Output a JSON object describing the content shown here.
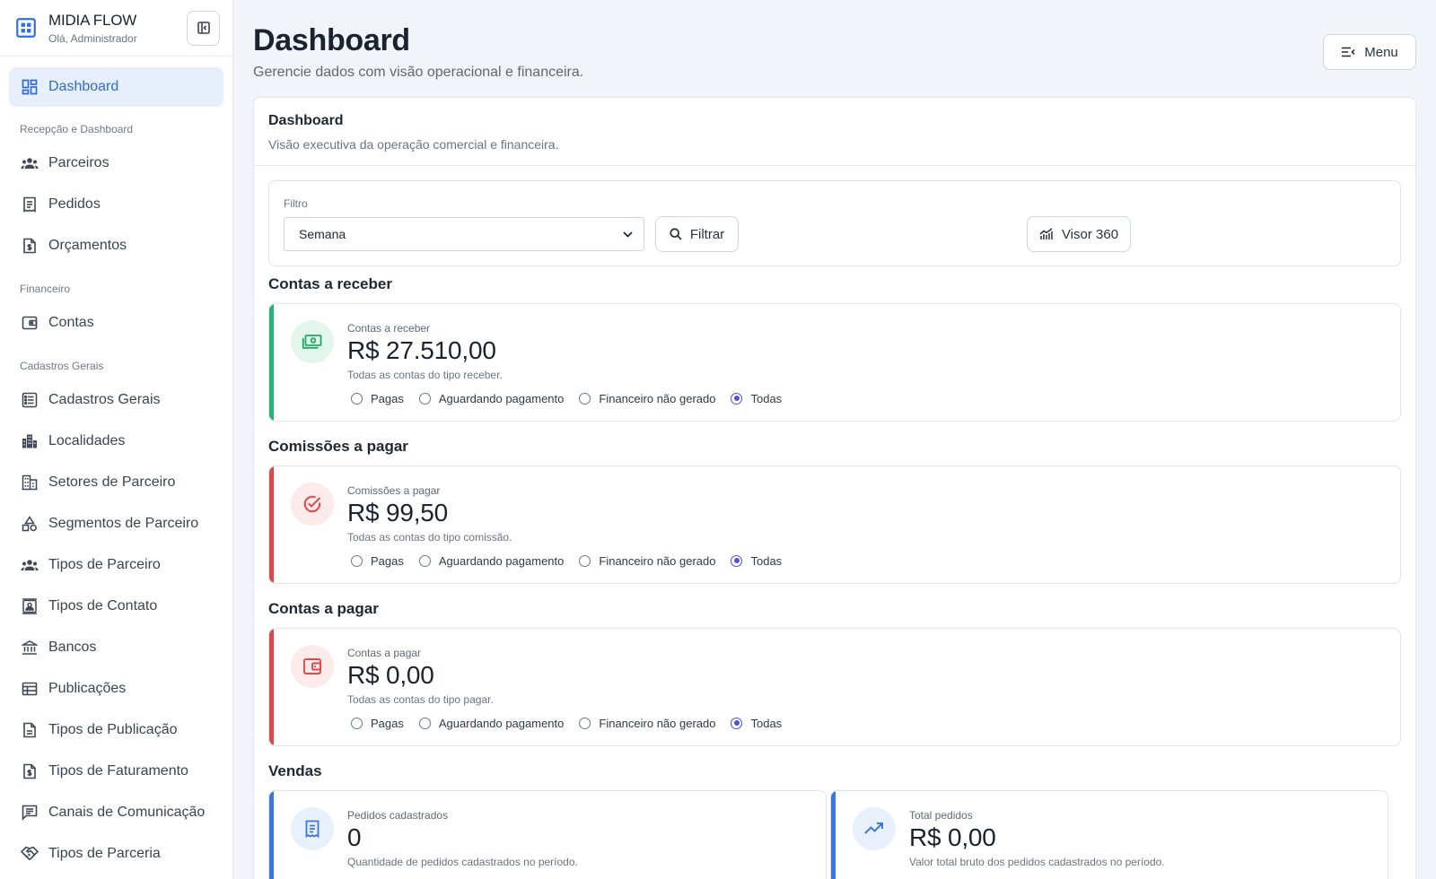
{
  "brand": {
    "title": "MIDIA FLOW",
    "subtitle": "Olá, Administrador"
  },
  "sidebar": {
    "active": {
      "label": "Dashboard",
      "icon": "dashboard-icon"
    },
    "sections": [
      {
        "title": "Recepção e Dashboard",
        "items": [
          {
            "label": "Parceiros",
            "icon": "people-icon"
          },
          {
            "label": "Pedidos",
            "icon": "receipt-icon"
          },
          {
            "label": "Orçamentos",
            "icon": "document-dollar-icon"
          }
        ]
      },
      {
        "title": "Financeiro",
        "items": [
          {
            "label": "Contas",
            "icon": "wallet-icon"
          }
        ]
      },
      {
        "title": "Cadastros Gerais",
        "items": [
          {
            "label": "Cadastros Gerais",
            "icon": "list-icon"
          },
          {
            "label": "Localidades",
            "icon": "city-icon"
          },
          {
            "label": "Setores de Parceiro",
            "icon": "building-icon"
          },
          {
            "label": "Segmentos de Parceiro",
            "icon": "shapes-icon"
          },
          {
            "label": "Tipos de Parceiro",
            "icon": "people-icon"
          },
          {
            "label": "Tipos de Contato",
            "icon": "contact-card-icon"
          },
          {
            "label": "Bancos",
            "icon": "bank-icon"
          },
          {
            "label": "Publicações",
            "icon": "table-icon"
          },
          {
            "label": "Tipos de Publicação",
            "icon": "file-icon"
          },
          {
            "label": "Tipos de Faturamento",
            "icon": "document-dollar-icon"
          },
          {
            "label": "Canais de Comunicação",
            "icon": "chat-icon"
          },
          {
            "label": "Tipos de Parceria",
            "icon": "handshake-icon"
          }
        ]
      }
    ]
  },
  "header": {
    "title": "Dashboard",
    "subtitle": "Gerencie dados com visão operacional e financeira.",
    "menu_label": "Menu"
  },
  "panel": {
    "title": "Dashboard",
    "subtitle": "Visão executiva da operação comercial e financeira."
  },
  "filter": {
    "label": "Filtro",
    "selected": "Semana",
    "filter_button": "Filtrar",
    "visor_button": "Visor 360"
  },
  "radio_options": [
    "Pagas",
    "Aguardando pagamento",
    "Financeiro não gerado",
    "Todas"
  ],
  "sections": {
    "receber": {
      "title": "Contas a receber",
      "label": "Contas a receber",
      "value": "R$ 27.510,00",
      "desc": "Todas as contas do tipo receber.",
      "selected": "Todas",
      "accent": "#22b573"
    },
    "comissoes": {
      "title": "Comissões a pagar",
      "label": "Comissões a pagar",
      "value": "R$ 99,50",
      "desc": "Todas as contas do tipo comissão.",
      "selected": "Todas",
      "accent": "#e0474c"
    },
    "pagar": {
      "title": "Contas a pagar",
      "label": "Contas a pagar",
      "value": "R$ 0,00",
      "desc": "Todas as contas do tipo pagar.",
      "selected": "Todas",
      "accent": "#e0474c"
    },
    "vendas": {
      "title": "Vendas",
      "pedidos": {
        "label": "Pedidos cadastrados",
        "value": "0",
        "desc": "Quantidade de pedidos cadastrados no período.",
        "accent": "#3a78e0"
      },
      "total": {
        "label": "Total pedidos",
        "value": "R$ 0,00",
        "desc": "Valor total bruto dos pedidos cadastrados no período.",
        "accent": "#3a78e0"
      }
    }
  }
}
